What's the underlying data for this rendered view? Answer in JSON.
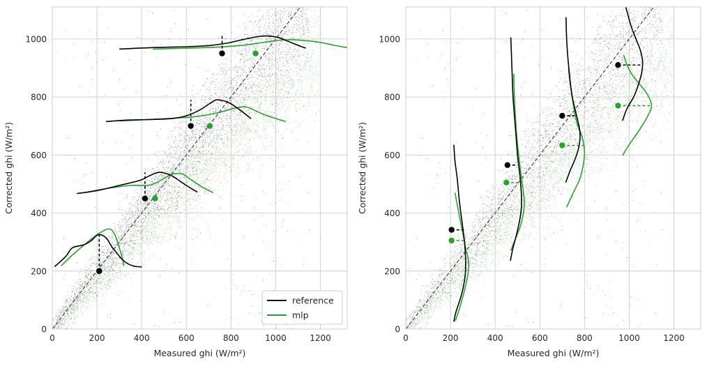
{
  "chart_data": [
    {
      "type": "scatter",
      "panel": "left",
      "xlabel": "Measured ghi (W/m²)",
      "ylabel": "Corrected ghi (W/m²)",
      "xlim": [
        0,
        1320
      ],
      "ylim": [
        0,
        1110
      ],
      "xticks": [
        0,
        200,
        400,
        600,
        800,
        1000,
        1200
      ],
      "yticks": [
        0,
        200,
        400,
        600,
        800,
        1000
      ],
      "grid": true,
      "legend": {
        "placement": "lower-right",
        "entries": [
          "reference",
          "mlp"
        ]
      },
      "reference_line": {
        "from": [
          0,
          0
        ],
        "to": [
          1110,
          1110
        ],
        "style": "dashed"
      },
      "density_orientation": "horizontal",
      "bins": [
        {
          "target": 200,
          "reference": {
            "x": 210,
            "y": 200,
            "peak": 325,
            "curve": [
              [
                10,
                215
              ],
              [
                60,
                250
              ],
              [
                90,
                280
              ],
              [
                140,
                290
              ],
              [
                175,
                305
              ],
              [
                205,
                325
              ],
              [
                240,
                315
              ],
              [
                270,
                280
              ],
              [
                320,
                235
              ],
              [
                360,
                218
              ],
              [
                400,
                214
              ]
            ]
          },
          "mlp": {
            "x": 210,
            "y": 200,
            "curve": [
              [
                40,
                218
              ],
              [
                90,
                255
              ],
              [
                150,
                295
              ],
              [
                210,
                330
              ],
              [
                255,
                345
              ],
              [
                280,
                325
              ],
              [
                300,
                280
              ],
              [
                315,
                240
              ],
              [
                320,
                218
              ]
            ]
          }
        },
        {
          "target": 450,
          "reference": {
            "x": 415,
            "y": 450,
            "peak": 540,
            "curve": [
              [
                110,
                467
              ],
              [
                200,
                477
              ],
              [
                300,
                495
              ],
              [
                390,
                512
              ],
              [
                440,
                530
              ],
              [
                480,
                540
              ],
              [
                530,
                530
              ],
              [
                580,
                505
              ],
              [
                620,
                485
              ],
              [
                650,
                472
              ]
            ]
          },
          "mlp": {
            "x": 460,
            "y": 450,
            "curve": [
              [
                140,
                470
              ],
              [
                250,
                485
              ],
              [
                350,
                495
              ],
              [
                430,
                495
              ],
              [
                480,
                510
              ],
              [
                530,
                532
              ],
              [
                580,
                535
              ],
              [
                620,
                515
              ],
              [
                670,
                490
              ],
              [
                720,
                470
              ]
            ]
          }
        },
        {
          "target": 700,
          "reference": {
            "x": 620,
            "y": 700,
            "peak": 790,
            "curve": [
              [
                240,
                715
              ],
              [
                330,
                720
              ],
              [
                430,
                722
              ],
              [
                530,
                725
              ],
              [
                600,
                735
              ],
              [
                660,
                755
              ],
              [
                710,
                780
              ],
              [
                740,
                790
              ],
              [
                790,
                780
              ],
              [
                840,
                755
              ],
              [
                890,
                725
              ]
            ]
          },
          "mlp": {
            "x": 705,
            "y": 700,
            "curve": [
              [
                300,
                717
              ],
              [
                430,
                722
              ],
              [
                550,
                727
              ],
              [
                650,
                733
              ],
              [
                740,
                745
              ],
              [
                820,
                762
              ],
              [
                870,
                765
              ],
              [
                930,
                745
              ],
              [
                990,
                728
              ],
              [
                1045,
                715
              ]
            ]
          }
        },
        {
          "target": 950,
          "reference": {
            "x": 760,
            "y": 950,
            "peak": 1010,
            "curve": [
              [
                300,
                965
              ],
              [
                450,
                970
              ],
              [
                600,
                973
              ],
              [
                700,
                977
              ],
              [
                780,
                985
              ],
              [
                850,
                997
              ],
              [
                920,
                1008
              ],
              [
                960,
                1010
              ],
              [
                1010,
                1005
              ],
              [
                1060,
                990
              ],
              [
                1110,
                975
              ],
              [
                1135,
                968
              ]
            ]
          },
          "mlp": {
            "x": 910,
            "y": 950,
            "curve": [
              [
                450,
                965
              ],
              [
                600,
                968
              ],
              [
                750,
                972
              ],
              [
                850,
                978
              ],
              [
                920,
                985
              ],
              [
                990,
                993
              ],
              [
                1050,
                997
              ],
              [
                1120,
                995
              ],
              [
                1200,
                988
              ],
              [
                1260,
                978
              ],
              [
                1320,
                970
              ]
            ]
          }
        }
      ]
    },
    {
      "type": "scatter",
      "panel": "right",
      "xlabel": "Measured ghi (W/m²)",
      "ylabel": "Corrected ghi (W/m²)",
      "xlim": [
        0,
        1320
      ],
      "ylim": [
        0,
        1110
      ],
      "xticks": [
        0,
        200,
        400,
        600,
        800,
        1000,
        1200
      ],
      "yticks": [
        0,
        200,
        400,
        600,
        800,
        1000
      ],
      "grid": true,
      "reference_line": {
        "from": [
          0,
          0
        ],
        "to": [
          1110,
          1110
        ],
        "style": "dashed"
      },
      "density_orientation": "vertical",
      "bins": [
        {
          "target": 200,
          "reference": {
            "x": 205,
            "y": 342,
            "curve": [
              [
                215,
                25
              ],
              [
                225,
                60
              ],
              [
                250,
                120
              ],
              [
                265,
                180
              ],
              [
                268,
                230
              ],
              [
                265,
                280
              ],
              [
                260,
                320
              ],
              [
                250,
                380
              ],
              [
                240,
                440
              ],
              [
                230,
                520
              ],
              [
                220,
                580
              ],
              [
                215,
                635
              ]
            ]
          },
          "mlp": {
            "x": 205,
            "y": 305,
            "curve": [
              [
                222,
                28
              ],
              [
                240,
                70
              ],
              [
                265,
                140
              ],
              [
                280,
                200
              ],
              [
                280,
                240
              ],
              [
                270,
                270
              ],
              [
                258,
                320
              ],
              [
                245,
                370
              ],
              [
                230,
                430
              ],
              [
                220,
                470
              ]
            ]
          }
        },
        {
          "target": 450,
          "reference": {
            "x": 455,
            "y": 565,
            "curve": [
              [
                468,
                235
              ],
              [
                480,
                280
              ],
              [
                500,
                340
              ],
              [
                515,
                400
              ],
              [
                518,
                450
              ],
              [
                512,
                520
              ],
              [
                500,
                600
              ],
              [
                490,
                700
              ],
              [
                480,
                800
              ],
              [
                475,
                900
              ],
              [
                470,
                1005
              ]
            ]
          },
          "mlp": {
            "x": 450,
            "y": 505,
            "curve": [
              [
                470,
                270
              ],
              [
                490,
                310
              ],
              [
                515,
                360
              ],
              [
                530,
                420
              ],
              [
                528,
                460
              ],
              [
                518,
                520
              ],
              [
                505,
                600
              ],
              [
                495,
                680
              ],
              [
                487,
                780
              ],
              [
                483,
                880
              ]
            ]
          }
        },
        {
          "target": 700,
          "reference": {
            "x": 700,
            "y": 735,
            "curve": [
              [
                716,
                505
              ],
              [
                735,
                545
              ],
              [
                760,
                590
              ],
              [
                775,
                630
              ],
              [
                780,
                670
              ],
              [
                775,
                700
              ],
              [
                760,
                750
              ],
              [
                745,
                800
              ],
              [
                735,
                860
              ],
              [
                725,
                940
              ],
              [
                720,
                1000
              ],
              [
                717,
                1075
              ]
            ]
          },
          "mlp": {
            "x": 700,
            "y": 633,
            "curve": [
              [
                720,
                420
              ],
              [
                750,
                470
              ],
              [
                780,
                520
              ],
              [
                795,
                570
              ],
              [
                800,
                610
              ],
              [
                790,
                660
              ],
              [
                770,
                700
              ],
              [
                755,
                750
              ],
              [
                745,
                800
              ],
              [
                735,
                850
              ],
              [
                728,
                900
              ]
            ]
          }
        },
        {
          "target": 950,
          "reference": {
            "x": 950,
            "y": 910,
            "curve": [
              [
                970,
                718
              ],
              [
                990,
                760
              ],
              [
                1020,
                800
              ],
              [
                1040,
                840
              ],
              [
                1055,
                880
              ],
              [
                1060,
                920
              ],
              [
                1050,
                960
              ],
              [
                1030,
                1000
              ],
              [
                1010,
                1040
              ],
              [
                995,
                1080
              ],
              [
                985,
                1110
              ]
            ]
          },
          "mlp": {
            "x": 950,
            "y": 770,
            "curve": [
              [
                970,
                598
              ],
              [
                995,
                630
              ],
              [
                1040,
                680
              ],
              [
                1080,
                730
              ],
              [
                1100,
                770
              ],
              [
                1080,
                810
              ],
              [
                1040,
                850
              ],
              [
                1010,
                880
              ],
              [
                990,
                910
              ],
              [
                975,
                945
              ]
            ]
          }
        }
      ]
    }
  ],
  "colors": {
    "reference": "#000000",
    "mlp": "#2ca02c",
    "scatter_dark": "#333333",
    "scatter_green": "#2ca02c",
    "grid": "#cccccc"
  },
  "legend": {
    "reference_label": "reference",
    "mlp_label": "mlp"
  }
}
